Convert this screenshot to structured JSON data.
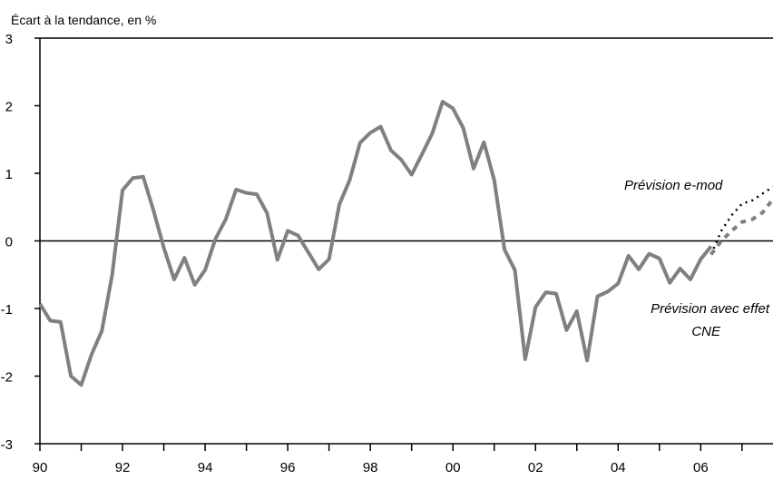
{
  "chart_data": {
    "type": "line",
    "ylabel": "Écart à la tendance, en %",
    "xlim": [
      1990,
      2007.75
    ],
    "ylim": [
      -3,
      3
    ],
    "x_tick_values": [
      1990,
      1992,
      1994,
      1996,
      1998,
      2000,
      2002,
      2004,
      2006
    ],
    "x_tick_labels": [
      "90",
      "92",
      "94",
      "96",
      "98",
      "00",
      "02",
      "04",
      "06"
    ],
    "y_tick_values": [
      3,
      2,
      1,
      0,
      -1,
      -2,
      -3
    ],
    "y_tick_labels": [
      "3",
      "2",
      "1",
      "0",
      "-1",
      "-2",
      "-3"
    ],
    "grid": false,
    "zero_line": true,
    "colors": {
      "main": "#808080",
      "forecast_emod": "#000000",
      "forecast_cne": "#808080",
      "axis": "#000000"
    },
    "series": [
      {
        "style": "solid",
        "x": [
          1990.0,
          1990.25,
          1990.5,
          1990.75,
          1991.0,
          1991.25,
          1991.5,
          1991.75,
          1992.0,
          1992.25,
          1992.5,
          1992.75,
          1993.0,
          1993.25,
          1993.5,
          1993.75,
          1994.0,
          1994.25,
          1994.5,
          1994.75,
          1995.0,
          1995.25,
          1995.5,
          1995.75,
          1996.0,
          1996.25,
          1996.5,
          1996.75,
          1997.0,
          1997.25,
          1997.5,
          1997.75,
          1998.0,
          1998.25,
          1998.5,
          1998.75,
          1999.0,
          1999.25,
          1999.5,
          1999.75,
          2000.0,
          2000.25,
          2000.5,
          2000.75,
          2001.0,
          2001.25,
          2001.5,
          2001.75,
          2002.0,
          2002.25,
          2002.5,
          2002.75,
          2003.0,
          2003.25,
          2003.5,
          2003.75,
          2004.0,
          2004.25,
          2004.5,
          2004.75,
          2005.0,
          2005.25,
          2005.5,
          2005.75,
          2006.0,
          2006.25
        ],
        "values": [
          -0.93,
          -1.18,
          -1.2,
          -2.0,
          -2.13,
          -1.68,
          -1.33,
          -0.5,
          0.75,
          0.93,
          0.95,
          0.45,
          -0.1,
          -0.57,
          -0.25,
          -0.65,
          -0.43,
          0.03,
          0.32,
          0.76,
          0.71,
          0.69,
          0.41,
          -0.28,
          0.15,
          0.08,
          -0.17,
          -0.42,
          -0.27,
          0.54,
          0.9,
          1.45,
          1.6,
          1.69,
          1.34,
          1.2,
          0.98,
          1.28,
          1.59,
          2.06,
          1.96,
          1.67,
          1.07,
          1.46,
          0.9,
          -0.13,
          -0.43,
          -1.75,
          -0.98,
          -0.76,
          -0.78,
          -1.32,
          -1.04,
          -1.77,
          -0.82,
          -0.75,
          -0.63,
          -0.22,
          -0.42,
          -0.19,
          -0.26,
          -0.62,
          -0.41,
          -0.57,
          -0.27,
          -0.08
        ]
      },
      {
        "style": "dotted",
        "x": [
          2006.25,
          2006.5,
          2006.75,
          2007.0,
          2007.25,
          2007.5,
          2007.75
        ],
        "values": [
          -0.2,
          0.15,
          0.38,
          0.55,
          0.6,
          0.7,
          0.8
        ]
      },
      {
        "style": "dashed",
        "x": [
          2006.25,
          2006.5,
          2006.75,
          2007.0,
          2007.25,
          2007.5,
          2007.75
        ],
        "values": [
          -0.2,
          0.0,
          0.15,
          0.28,
          0.32,
          0.42,
          0.62
        ]
      }
    ],
    "annotations": [
      "Prévision e-mod",
      "Prévision avec effet",
      "CNE"
    ]
  }
}
